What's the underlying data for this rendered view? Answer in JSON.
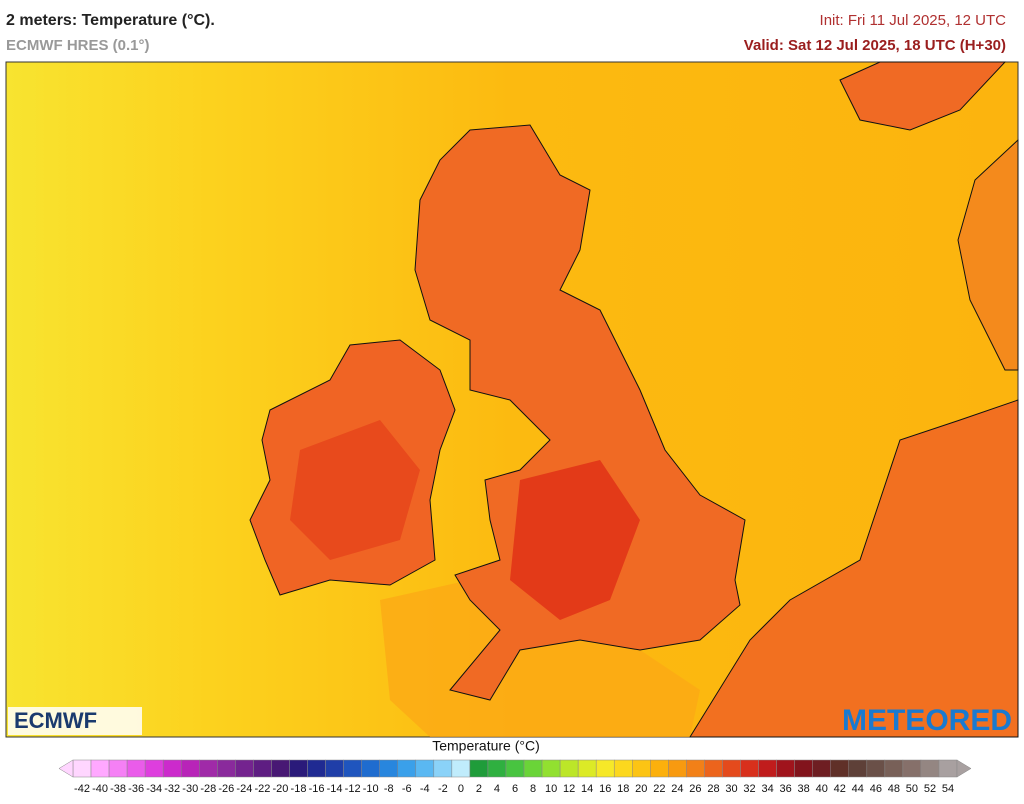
{
  "header": {
    "title": "2 meters: Temperature (°C).",
    "model": "ECMWF HRES (0.1°)",
    "init": "Init: Fri 11 Jul 2025, 12 UTC",
    "valid": "Valid: Sat 12 Jul 2025, 18 UTC (H+30)"
  },
  "logos": {
    "left": "ECMWF",
    "right": "METEORED"
  },
  "colorbar": {
    "title": "Temperature (°C)",
    "ticks": [
      -42,
      -40,
      -38,
      -36,
      -34,
      -32,
      -30,
      -28,
      -26,
      -24,
      -22,
      -20,
      -18,
      -16,
      -14,
      -12,
      -10,
      -8,
      -6,
      -4,
      -2,
      0,
      2,
      4,
      6,
      8,
      10,
      12,
      14,
      16,
      18,
      20,
      22,
      24,
      26,
      28,
      30,
      32,
      34,
      36,
      38,
      40,
      42,
      44,
      46,
      48,
      50,
      52,
      54
    ],
    "colors": [
      "#ffd6ff",
      "#ffa8ff",
      "#f580f5",
      "#ea5cea",
      "#de3ede",
      "#cc2acc",
      "#b824b8",
      "#a02aa8",
      "#8a2a9c",
      "#74238f",
      "#5e1d82",
      "#481874",
      "#2a1a7a",
      "#1f2a92",
      "#1f3ea8",
      "#1f55be",
      "#1f6ccf",
      "#2886de",
      "#3aa0ea",
      "#5ab8f2",
      "#8ad2f8",
      "#c0ecfc",
      "#1f9c3a",
      "#2fb040",
      "#48c440",
      "#6ad438",
      "#92e030",
      "#bce628",
      "#dcea26",
      "#f6e828",
      "#fcd81e",
      "#fcc414",
      "#fcb00c",
      "#f89a10",
      "#f28018",
      "#ec641c",
      "#e44a1c",
      "#d8301c",
      "#c01c1c",
      "#a0141c",
      "#82141c",
      "#6e1e22",
      "#603028",
      "#5e4038",
      "#6a5048",
      "#786058",
      "#86706a",
      "#948682",
      "#a8a0a0"
    ]
  }
}
